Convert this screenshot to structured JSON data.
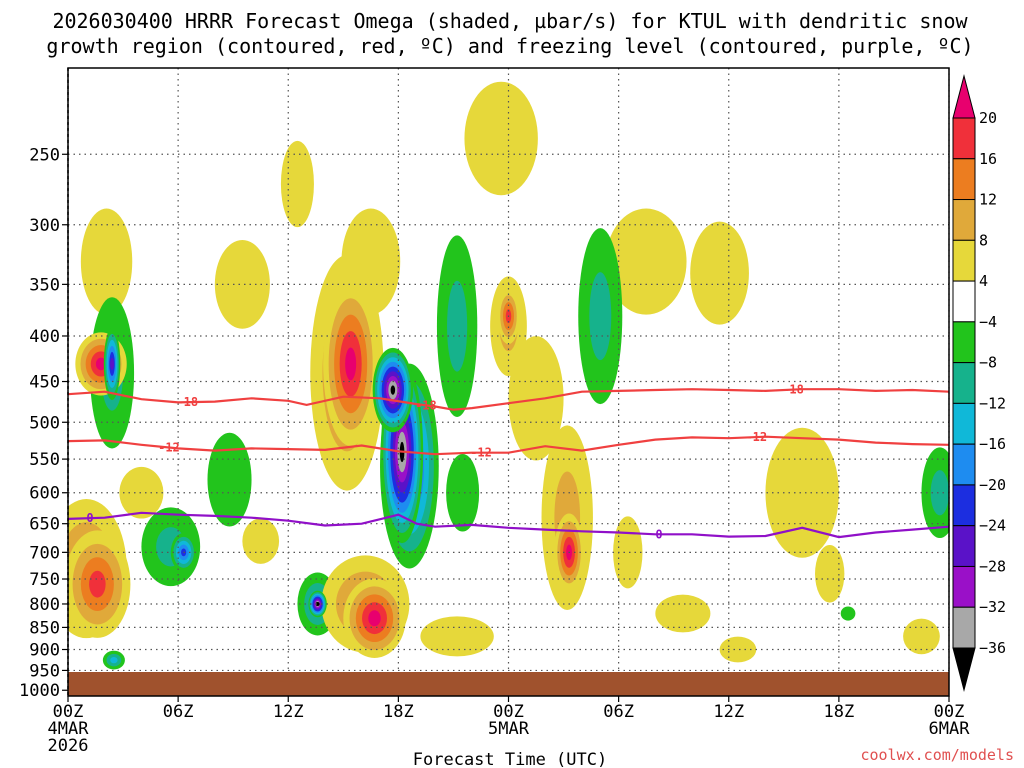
{
  "chart_data": {
    "type": "heatmap",
    "title_line1": "2026030400 HRRR Forecast Omega (shaded, µbar/s) for KTUL with dendritic snow",
    "title_line2": "growth region (contoured, red, ºC) and freezing level (contoured, purple, ºC)",
    "xlabel": "Forecast Time (UTC)",
    "ylabel": "",
    "x_hours_range": [
      0,
      48
    ],
    "y_pressure_range": [
      1000,
      200
    ],
    "x_ticks": [
      {
        "hour": 0,
        "label": "00Z",
        "sub1": "4MAR",
        "sub2": "2026"
      },
      {
        "hour": 6,
        "label": "06Z",
        "sub1": "",
        "sub2": ""
      },
      {
        "hour": 12,
        "label": "12Z",
        "sub1": "",
        "sub2": ""
      },
      {
        "hour": 18,
        "label": "18Z",
        "sub1": "",
        "sub2": ""
      },
      {
        "hour": 24,
        "label": "00Z",
        "sub1": "5MAR",
        "sub2": ""
      },
      {
        "hour": 30,
        "label": "06Z",
        "sub1": "",
        "sub2": ""
      },
      {
        "hour": 36,
        "label": "12Z",
        "sub1": "",
        "sub2": ""
      },
      {
        "hour": 42,
        "label": "18Z",
        "sub1": "",
        "sub2": ""
      },
      {
        "hour": 48,
        "label": "00Z",
        "sub1": "6MAR",
        "sub2": ""
      }
    ],
    "y_ticks": [
      250,
      300,
      350,
      400,
      450,
      500,
      550,
      600,
      650,
      700,
      750,
      800,
      850,
      900,
      950,
      1000
    ],
    "colorbar": {
      "labels": [
        "20",
        "16",
        "12",
        "8",
        "4",
        "−4",
        "−8",
        "−12",
        "−16",
        "−20",
        "−24",
        "−28",
        "−32",
        "−36"
      ],
      "colors": [
        "#e8006e",
        "#f0303a",
        "#ec7d20",
        "#e0a93a",
        "#e6d83a",
        "#ffffff",
        "#22c41c",
        "#16b28c",
        "#10b8d8",
        "#1e8cf0",
        "#1c2ee0",
        "#5a12c8",
        "#9a10c8",
        "#a8a8a8",
        "#000000"
      ]
    },
    "contours": [
      {
        "name": "dgz-minus18",
        "color": "#f04040",
        "label": "-18",
        "points": [
          [
            0,
            465
          ],
          [
            2,
            462
          ],
          [
            4,
            471
          ],
          [
            6,
            475
          ],
          [
            8,
            474
          ],
          [
            10,
            470
          ],
          [
            12,
            473
          ],
          [
            13,
            478
          ],
          [
            15,
            468
          ],
          [
            17,
            470
          ],
          [
            19,
            477
          ],
          [
            20,
            480
          ],
          [
            21,
            484
          ],
          [
            22,
            482
          ],
          [
            24,
            476
          ],
          [
            26,
            470
          ],
          [
            28,
            462
          ],
          [
            30,
            461
          ],
          [
            32,
            460
          ],
          [
            34,
            459
          ],
          [
            36,
            460
          ],
          [
            38,
            461
          ],
          [
            40,
            459
          ],
          [
            42,
            459
          ],
          [
            44,
            461
          ],
          [
            46,
            460
          ],
          [
            48,
            462
          ]
        ],
        "label_hours": [
          6.5,
          19.5,
          39.5
        ]
      },
      {
        "name": "dgz-minus12",
        "color": "#f04040",
        "label": "-12",
        "points": [
          [
            0,
            525
          ],
          [
            2,
            524
          ],
          [
            4,
            530
          ],
          [
            6,
            535
          ],
          [
            8,
            538
          ],
          [
            10,
            535
          ],
          [
            12,
            536
          ],
          [
            14,
            537
          ],
          [
            16,
            531
          ],
          [
            18,
            539
          ],
          [
            20,
            543
          ],
          [
            22,
            541
          ],
          [
            24,
            541
          ],
          [
            26,
            532
          ],
          [
            28,
            538
          ],
          [
            30,
            530
          ],
          [
            32,
            523
          ],
          [
            34,
            520
          ],
          [
            36,
            521
          ],
          [
            38,
            519
          ],
          [
            40,
            521
          ],
          [
            42,
            523
          ],
          [
            44,
            527
          ],
          [
            46,
            529
          ],
          [
            48,
            530
          ]
        ],
        "label_hours": [
          5.5,
          22.5,
          37.5
        ]
      },
      {
        "name": "freezing-level-0",
        "color": "#9010c8",
        "label": "0",
        "points": [
          [
            0,
            642
          ],
          [
            2,
            640
          ],
          [
            4,
            632
          ],
          [
            6,
            635
          ],
          [
            8,
            637
          ],
          [
            10,
            640
          ],
          [
            12,
            645
          ],
          [
            14,
            653
          ],
          [
            16,
            650
          ],
          [
            18,
            635
          ],
          [
            19,
            650
          ],
          [
            20,
            655
          ],
          [
            22,
            652
          ],
          [
            24,
            657
          ],
          [
            26,
            660
          ],
          [
            28,
            663
          ],
          [
            30,
            665
          ],
          [
            32,
            668
          ],
          [
            34,
            668
          ],
          [
            36,
            672
          ],
          [
            38,
            671
          ],
          [
            40,
            657
          ],
          [
            42,
            673
          ],
          [
            44,
            665
          ],
          [
            46,
            660
          ],
          [
            48,
            655
          ]
        ],
        "label_hours": [
          1.2,
          32.2
        ]
      }
    ],
    "omega_regions": [
      {
        "hour": 1.0,
        "p": 730,
        "hw": 2.2,
        "hh": 260,
        "value": 14
      },
      {
        "hour": 1.6,
        "p": 760,
        "hw": 1.8,
        "hh": 210,
        "value": 20
      },
      {
        "hour": 1.8,
        "p": 430,
        "hw": 1.4,
        "hh": 70,
        "value": 22
      },
      {
        "hour": 2.1,
        "p": 330,
        "hw": 1.4,
        "hh": 90,
        "value": 5
      },
      {
        "hour": 2.4,
        "p": 440,
        "hw": 1.2,
        "hh": 170,
        "value": -12
      },
      {
        "hour": 2.4,
        "p": 430,
        "hw": 0.45,
        "hh": 80,
        "value": -28
      },
      {
        "hour": 2.5,
        "p": 925,
        "hw": 0.6,
        "hh": 45,
        "value": -14
      },
      {
        "hour": 5.6,
        "p": 690,
        "hw": 1.6,
        "hh": 140,
        "value": -10
      },
      {
        "hour": 6.3,
        "p": 700,
        "hw": 0.7,
        "hh": 70,
        "value": -22
      },
      {
        "hour": 8.8,
        "p": 580,
        "hw": 1.2,
        "hh": 140,
        "value": -7
      },
      {
        "hour": 9.5,
        "p": 350,
        "hw": 1.5,
        "hh": 80,
        "value": 5
      },
      {
        "hour": 13.6,
        "p": 800,
        "hw": 1.1,
        "hh": 130,
        "value": -14
      },
      {
        "hour": 13.6,
        "p": 800,
        "hw": 0.5,
        "hh": 55,
        "value": -38
      },
      {
        "hour": 15.2,
        "p": 440,
        "hw": 2.0,
        "hh": 260,
        "value": 14
      },
      {
        "hour": 15.4,
        "p": 430,
        "hw": 1.5,
        "hh": 180,
        "value": 22
      },
      {
        "hour": 16.2,
        "p": 800,
        "hw": 2.4,
        "hh": 200,
        "value": 16
      },
      {
        "hour": 16.7,
        "p": 830,
        "hw": 1.7,
        "hh": 170,
        "value": 22
      },
      {
        "hour": 18.6,
        "p": 560,
        "hw": 1.6,
        "hh": 290,
        "value": -28
      },
      {
        "hour": 18.2,
        "p": 540,
        "hw": 1.15,
        "hh": 250,
        "value": -38
      },
      {
        "hour": 17.7,
        "p": 460,
        "hw": 1.1,
        "hh": 100,
        "value": -38
      },
      {
        "hour": 21.2,
        "p": 390,
        "hw": 1.1,
        "hh": 180,
        "value": -12
      },
      {
        "hour": 21.5,
        "p": 600,
        "hw": 0.9,
        "hh": 120,
        "value": -8
      },
      {
        "hour": 21.2,
        "p": 870,
        "hw": 2.0,
        "hh": 90,
        "value": 8
      },
      {
        "hour": 24.0,
        "p": 390,
        "hw": 1.0,
        "hh": 100,
        "value": 12
      },
      {
        "hour": 24.0,
        "p": 380,
        "hw": 0.6,
        "hh": 55,
        "value": 20
      },
      {
        "hour": 23.6,
        "p": 240,
        "hw": 2.0,
        "hh": 70,
        "value": 5
      },
      {
        "hour": 25.5,
        "p": 470,
        "hw": 1.5,
        "hh": 150,
        "value": 8
      },
      {
        "hour": 27.2,
        "p": 640,
        "hw": 1.4,
        "hh": 300,
        "value": 10
      },
      {
        "hour": 27.3,
        "p": 700,
        "hw": 0.8,
        "hh": 140,
        "value": 21
      },
      {
        "hour": 29.0,
        "p": 380,
        "hw": 1.2,
        "hh": 170,
        "value": -10
      },
      {
        "hour": 30.5,
        "p": 700,
        "hw": 0.8,
        "hh": 130,
        "value": 8
      },
      {
        "hour": 31.5,
        "p": 330,
        "hw": 2.2,
        "hh": 90,
        "value": 5
      },
      {
        "hour": 35.5,
        "p": 340,
        "hw": 1.6,
        "hh": 90,
        "value": 5
      },
      {
        "hour": 36.5,
        "p": 900,
        "hw": 1.0,
        "hh": 60,
        "value": 8
      },
      {
        "hour": 40.0,
        "p": 600,
        "hw": 2.0,
        "hh": 200,
        "value": 5
      },
      {
        "hour": 41.5,
        "p": 740,
        "hw": 0.8,
        "hh": 110,
        "value": 8
      },
      {
        "hour": 42.5,
        "p": 820,
        "hw": 0.4,
        "hh": 30,
        "value": -8
      },
      {
        "hour": 47.5,
        "p": 600,
        "hw": 1.0,
        "hh": 140,
        "value": -10
      },
      {
        "hour": 46.5,
        "p": 870,
        "hw": 1.0,
        "hh": 80,
        "value": 5
      },
      {
        "hour": 16.5,
        "p": 330,
        "hw": 1.6,
        "hh": 90,
        "value": 5
      },
      {
        "hour": 12.5,
        "p": 270,
        "hw": 0.9,
        "hh": 60,
        "value": 5
      },
      {
        "hour": 4.0,
        "p": 600,
        "hw": 1.2,
        "hh": 80,
        "value": 5
      },
      {
        "hour": 33.5,
        "p": 820,
        "hw": 1.5,
        "hh": 80,
        "value": 5
      },
      {
        "hour": 10.5,
        "p": 680,
        "hw": 1.0,
        "hh": 80,
        "value": 5
      }
    ],
    "surface_color": "#a0522d"
  },
  "footer": {
    "credit": "coolwx.com/models"
  }
}
